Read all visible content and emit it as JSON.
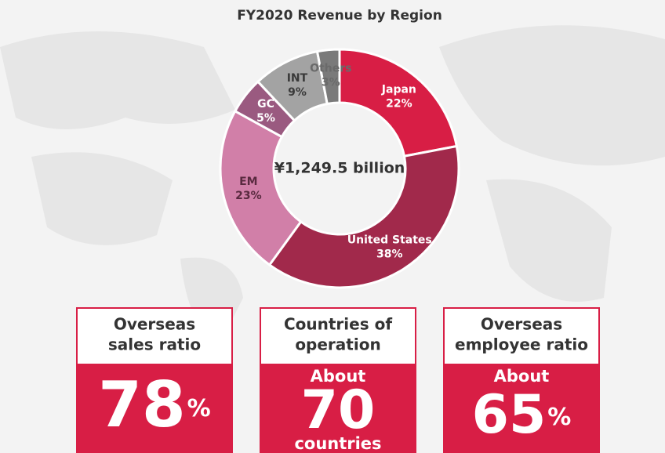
{
  "chart_data": {
    "type": "pie",
    "title": "FY2020 Revenue by Region",
    "center_label": "¥1,249.5 billion",
    "categories": [
      "Japan",
      "United States",
      "EM",
      "GC",
      "INT",
      "Others"
    ],
    "values": [
      22,
      38,
      23,
      5,
      9,
      3
    ],
    "value_labels": [
      "22%",
      "38%",
      "23%",
      "5%",
      "9%",
      "3%"
    ],
    "colors": [
      "#d81e45",
      "#a1294b",
      "#d17fa8",
      "#9a5a80",
      "#a3a3a3",
      "#7a7a7a"
    ],
    "label_colors": [
      "#ffffff",
      "#ffffff",
      "#5a2a40",
      "#ffffff",
      "#3a3a3a",
      "#6a6a6a"
    ]
  },
  "cards": [
    {
      "heading": [
        "Overseas",
        "sales ratio"
      ],
      "number": "78",
      "unit": "%",
      "unit_inline": true
    },
    {
      "heading": [
        "Countries of",
        "operation"
      ],
      "lead": "About",
      "number": "70",
      "unit": "countries",
      "unit_inline": false
    },
    {
      "heading": [
        "Overseas",
        "employee ratio"
      ],
      "lead": "About",
      "number": "65",
      "unit": "%",
      "unit_inline": true
    }
  ]
}
